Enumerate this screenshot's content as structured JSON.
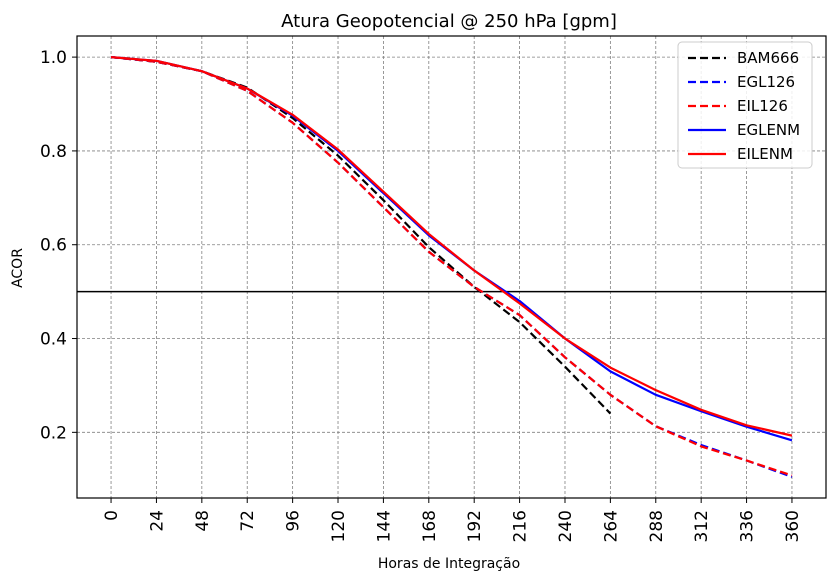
{
  "chart_data": {
    "type": "line",
    "title": "Atura Geopotencial @ 250 hPa [gpm]",
    "xlabel": "Horas de Integração",
    "ylabel": "ACOR",
    "x": [
      0,
      24,
      48,
      72,
      96,
      120,
      144,
      168,
      192,
      216,
      240,
      264,
      288,
      312,
      336,
      360
    ],
    "x_tick_labels": [
      "0",
      "24",
      "48",
      "72",
      "96",
      "120",
      "144",
      "168",
      "192",
      "216",
      "240",
      "264",
      "288",
      "312",
      "336",
      "360"
    ],
    "xlim": [
      -18,
      378
    ],
    "y_ticks": [
      0.2,
      0.4,
      0.6,
      0.8,
      1.0
    ],
    "y_tick_labels": [
      "0.2",
      "0.4",
      "0.6",
      "0.8",
      "1.0"
    ],
    "ylim": [
      0.06,
      1.045
    ],
    "grid": true,
    "reference_line": 0.5,
    "legend_position": "top-right",
    "series": [
      {
        "name": "BAM666",
        "color": "#000000",
        "style": "dashed",
        "values": [
          1.0,
          0.99,
          0.97,
          0.935,
          0.87,
          0.79,
          0.695,
          0.595,
          0.51,
          0.435,
          0.34,
          0.24,
          null,
          null,
          null,
          null
        ]
      },
      {
        "name": "EGL126",
        "color": "#0000ff",
        "style": "dashed",
        "values": [
          1.0,
          0.99,
          0.97,
          0.928,
          0.86,
          0.775,
          0.68,
          0.585,
          0.51,
          0.45,
          0.36,
          0.28,
          0.213,
          0.173,
          0.14,
          0.105
        ]
      },
      {
        "name": "EIL126",
        "color": "#ff0000",
        "style": "dashed",
        "values": [
          1.0,
          0.99,
          0.97,
          0.928,
          0.86,
          0.775,
          0.68,
          0.585,
          0.51,
          0.45,
          0.36,
          0.28,
          0.213,
          0.17,
          0.14,
          0.108
        ]
      },
      {
        "name": "EGLENM",
        "color": "#0000ff",
        "style": "solid",
        "values": [
          1.0,
          0.992,
          0.97,
          0.933,
          0.875,
          0.8,
          0.71,
          0.62,
          0.545,
          0.48,
          0.4,
          0.33,
          0.28,
          0.245,
          0.212,
          0.183
        ]
      },
      {
        "name": "EILENM",
        "color": "#ff0000",
        "style": "solid",
        "values": [
          1.0,
          0.992,
          0.97,
          0.933,
          0.877,
          0.803,
          0.713,
          0.623,
          0.545,
          0.475,
          0.4,
          0.338,
          0.29,
          0.248,
          0.215,
          0.193
        ]
      }
    ]
  }
}
